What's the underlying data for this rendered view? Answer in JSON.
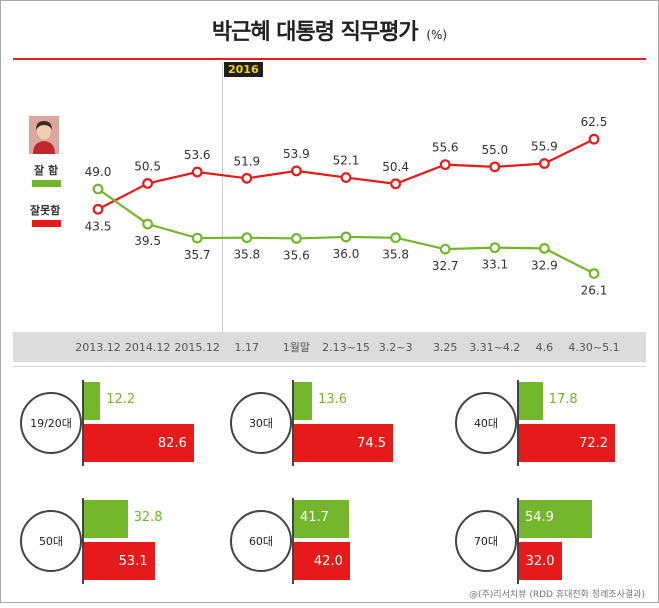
{
  "title": "박근혜 대통령 직무평가",
  "title_unit": "(%)",
  "year_marker": "2016",
  "legend": {
    "approve_label": "잘 함",
    "disapprove_label": "잘못함"
  },
  "footer": "@(주)리서치뷰 (RDD 휴대전화 정례조사결과)",
  "colors": {
    "approve": "#73b62b",
    "disapprove": "#e61a1a",
    "accent_line": "#e41f1f",
    "year_badge_bg": "#1e1e1e",
    "year_badge_text": "#f2d400"
  },
  "chart_data": [
    {
      "type": "line",
      "categories": [
        "2013.12",
        "2014.12",
        "2015.12",
        "1.17",
        "1월말",
        "2.13~15",
        "3.2~3",
        "3.25",
        "3.31~4.2",
        "4.6",
        "4.30~5.1"
      ],
      "series": [
        {
          "name": "잘 함",
          "values": [
            49.0,
            39.5,
            35.7,
            35.8,
            35.6,
            36.0,
            35.8,
            32.7,
            33.1,
            32.9,
            26.1
          ]
        },
        {
          "name": "잘못함",
          "values": [
            43.5,
            50.5,
            53.6,
            51.9,
            53.9,
            52.1,
            50.4,
            55.6,
            55.0,
            55.9,
            62.5
          ]
        }
      ],
      "grid": false
    },
    {
      "type": "bar",
      "categories": [
        "19/20대",
        "30대",
        "40대",
        "50대",
        "60대",
        "70대"
      ],
      "series": [
        {
          "name": "잘 함",
          "values": [
            12.2,
            13.6,
            17.8,
            32.8,
            41.7,
            54.9
          ]
        },
        {
          "name": "잘못함",
          "values": [
            82.6,
            74.5,
            72.2,
            53.1,
            42.0,
            32.0
          ]
        }
      ],
      "orientation": "horizontal"
    }
  ]
}
